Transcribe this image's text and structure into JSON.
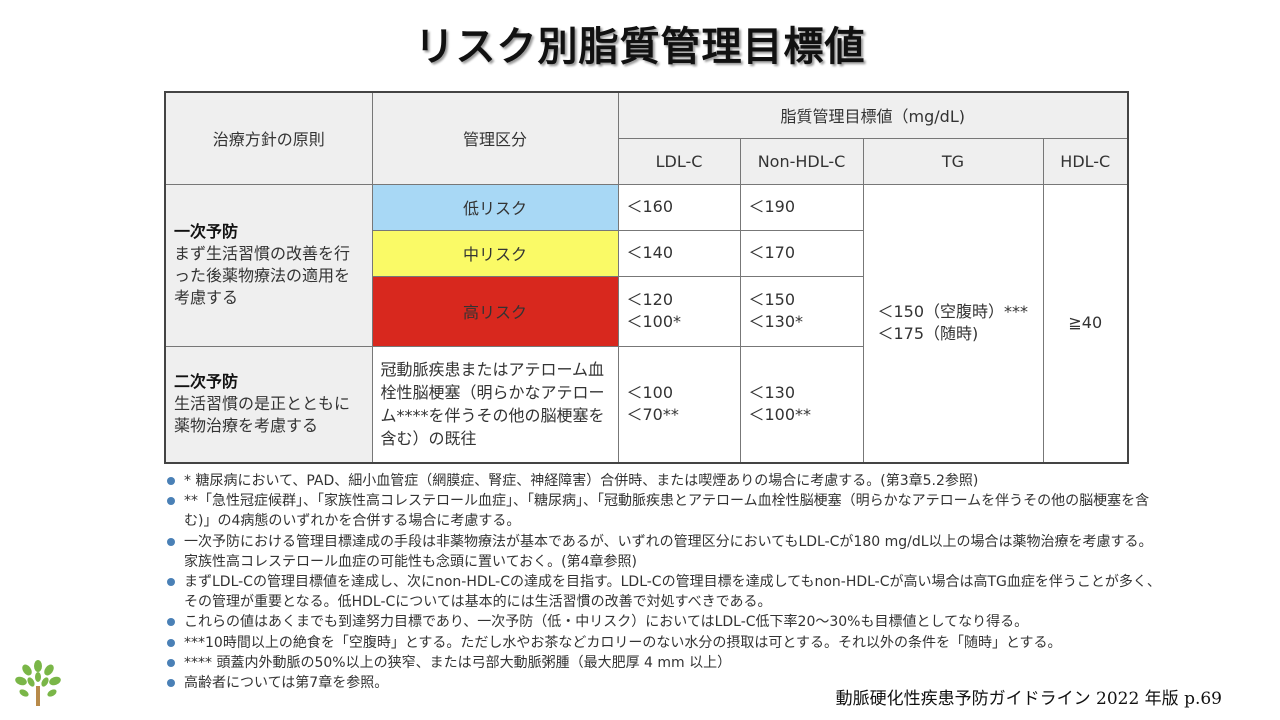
{
  "title": "リスク別脂質管理目標値",
  "table": {
    "col_principle": "治療方針の原則",
    "col_category": "管理区分",
    "col_target_group": "脂質管理目標値（mg/dL)",
    "col_ldl": "LDL-C",
    "col_nonhdl": "Non-HDL-C",
    "col_tg": "TG",
    "col_hdl": "HDL-C",
    "primary_title": "一次予防",
    "primary_desc": "まず生活習慣の改善を行った後薬物療法の適用を考慮する",
    "secondary_title": "二次予防",
    "secondary_desc": "生活習慣の是正とともに薬物治療を考慮する",
    "rows": {
      "low": {
        "label": "低リスク",
        "color": "#a8d8f5",
        "ldl": "＜160",
        "nonhdl": "＜190"
      },
      "mid": {
        "label": "中リスク",
        "color": "#fafa66",
        "ldl": "＜140",
        "nonhdl": "＜170"
      },
      "high": {
        "label": "高リスク",
        "color": "#d8281e",
        "ldl1": "＜120",
        "ldl2": "＜100*",
        "nonhdl1": "＜150",
        "nonhdl2": "＜130*"
      },
      "secondary": {
        "label": "冠動脈疾患またはアテローム血栓性脳梗塞（明らかなアテローム****を伴うその他の脳梗塞を含む）の既往",
        "ldl1": "＜100",
        "ldl2": "＜70**",
        "nonhdl1": "＜130",
        "nonhdl2": "＜100**"
      }
    },
    "tg1": "＜150（空腹時）***",
    "tg2": "＜175（随時)",
    "hdl": "≧40"
  },
  "notes": [
    "* 糖尿病において、PAD、細小血管症（網膜症、腎症、神経障害）合併時、または喫煙ありの場合に考慮する。(第3章5.2参照)",
    "**「急性冠症候群」、「家族性高コレステロール血症」、「糖尿病」、「冠動脈疾患とアテローム血栓性脳梗塞（明らかなアテロームを伴うその他の脳梗塞を含む)」の4病態のいずれかを合併する場合に考慮する。",
    "一次予防における管理目標達成の手段は非薬物療法が基本であるが、いずれの管理区分においてもLDL-Cが180 mg/dL以上の場合は薬物治療を考慮する。家族性高コレステロール血症の可能性も念頭に置いておく。(第4章参照)",
    "まずLDL-Cの管理目標値を達成し、次にnon-HDL-Cの達成を目指す。LDL-Cの管理目標を達成してもnon-HDL-Cが高い場合は高TG血症を伴うことが多く、その管理が重要となる。低HDL-Cについては基本的には生活習慣の改善で対処すべきである。",
    "これらの値はあくまでも到達努力目標であり、一次予防（低・中リスク）においてはLDL-C低下率20〜30%も目標値としてなり得る。",
    "***10時間以上の絶食を「空腹時」とする。ただし水やお茶などカロリーのない水分の摂取は可とする。それ以外の条件を「随時」とする。",
    "**** 頭蓋内外動脈の50%以上の狭窄、または弓部大動脈粥腫（最大肥厚 4 mm 以上）",
    "高齢者については第7章を参照。"
  ],
  "source": "動脈硬化性疾患予防ガイドライン 2022 年版 p.69",
  "logo_icon": "tree-logo-icon",
  "bullet_color": "#4a80b6"
}
